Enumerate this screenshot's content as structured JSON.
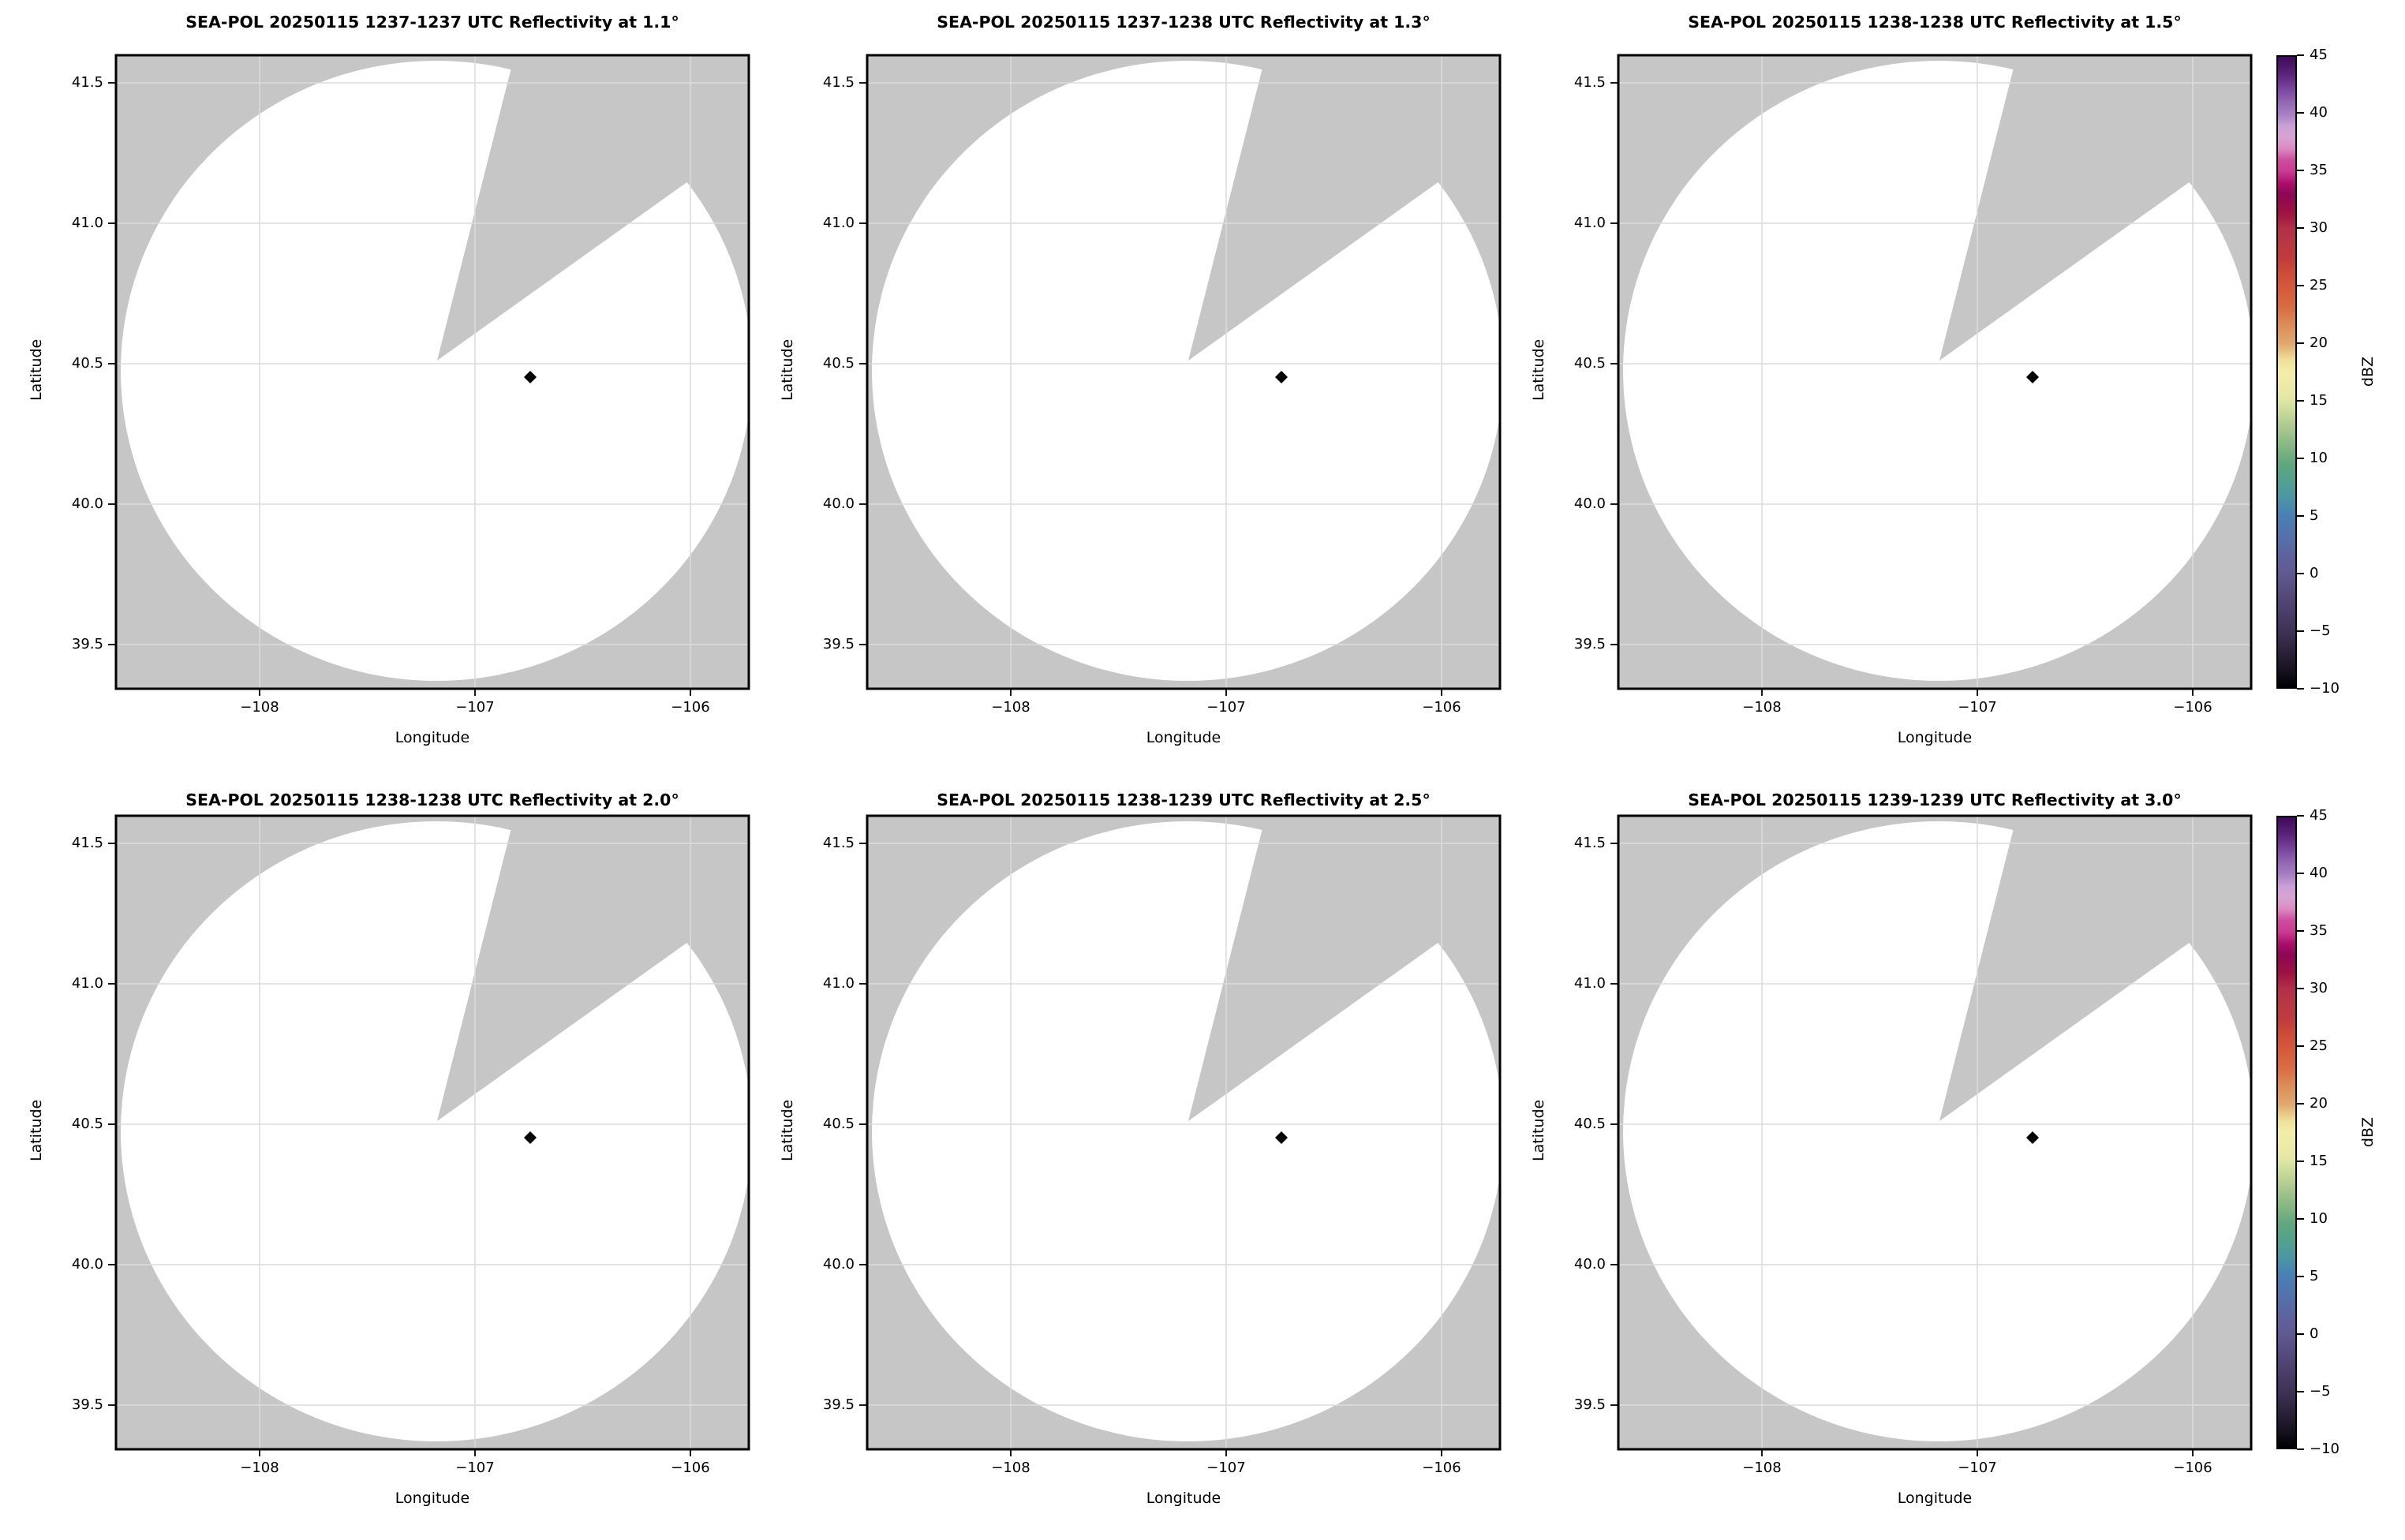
{
  "figure": {
    "xlabel": "Longitude",
    "ylabel": "Latitude",
    "x_ticks": [
      "−108",
      "−107",
      "−106"
    ],
    "y_ticks": [
      "41.5",
      "41.0",
      "40.5",
      "40.0",
      "39.5"
    ],
    "colors": {
      "panel_face": "#c6c6c6",
      "scan_area": "#ffffff",
      "gridline": "#dcdcdc",
      "border": "#000000",
      "marker": "#000000",
      "page_background": "#ffffff"
    },
    "panels": [
      {
        "title": "SEA-POL 20250115 1237-1237 UTC Reflectivity at 1.1°"
      },
      {
        "title": "SEA-POL 20250115 1237-1238 UTC Reflectivity at 1.3°"
      },
      {
        "title": "SEA-POL 20250115 1238-1238 UTC Reflectivity at 1.5°"
      },
      {
        "title": "SEA-POL 20250115 1238-1238 UTC Reflectivity at 2.0°"
      },
      {
        "title": "SEA-POL 20250115 1238-1239 UTC Reflectivity at 2.5°"
      },
      {
        "title": "SEA-POL 20250115 1239-1239 UTC Reflectivity at 3.0°"
      }
    ],
    "colorbar": {
      "label": "dBZ",
      "ticks": [
        "45",
        "40",
        "35",
        "30",
        "25",
        "20",
        "15",
        "10",
        "5",
        "0",
        "−5",
        "−10"
      ],
      "vmin": -10,
      "vmax": 45,
      "gradient": [
        {
          "v": -10,
          "c": "#000000"
        },
        {
          "v": -8.5,
          "c": "#171221"
        },
        {
          "v": -7,
          "c": "#2a2138"
        },
        {
          "v": -5,
          "c": "#3f3457"
        },
        {
          "v": -4,
          "c": "#463a63"
        },
        {
          "v": -2,
          "c": "#55497b"
        },
        {
          "v": 0,
          "c": "#615a92"
        },
        {
          "v": 1,
          "c": "#5f5f9b"
        },
        {
          "v": 3,
          "c": "#5570aa"
        },
        {
          "v": 5,
          "c": "#4a7fb5"
        },
        {
          "v": 6.5,
          "c": "#4b96a5"
        },
        {
          "v": 8,
          "c": "#52a18f"
        },
        {
          "v": 9.5,
          "c": "#61a67e"
        },
        {
          "v": 11,
          "c": "#84b683"
        },
        {
          "v": 13,
          "c": "#b3cc92"
        },
        {
          "v": 15,
          "c": "#dfe6a4"
        },
        {
          "v": 16,
          "c": "#ece9a8"
        },
        {
          "v": 17.5,
          "c": "#f2eda9"
        },
        {
          "v": 18.5,
          "c": "#efe09b"
        },
        {
          "v": 20,
          "c": "#e0a76e"
        },
        {
          "v": 21.5,
          "c": "#dc8f5a"
        },
        {
          "v": 23,
          "c": "#d86f44"
        },
        {
          "v": 25,
          "c": "#d4573b"
        },
        {
          "v": 26.5,
          "c": "#c94738"
        },
        {
          "v": 27.5,
          "c": "#bf3a3e"
        },
        {
          "v": 28.5,
          "c": "#b73a42"
        },
        {
          "v": 30,
          "c": "#b23048"
        },
        {
          "v": 31.5,
          "c": "#9c1142"
        },
        {
          "v": 33,
          "c": "#8c0754"
        },
        {
          "v": 34,
          "c": "#ad0e6e"
        },
        {
          "v": 35,
          "c": "#c93b92"
        },
        {
          "v": 36,
          "c": "#cc4d9e"
        },
        {
          "v": 37,
          "c": "#dc8ac2"
        },
        {
          "v": 38,
          "c": "#d8a3d4"
        },
        {
          "v": 39,
          "c": "#c99fd6"
        },
        {
          "v": 40,
          "c": "#a57fc2"
        },
        {
          "v": 41,
          "c": "#9468b3"
        },
        {
          "v": 42,
          "c": "#7e4aa3"
        },
        {
          "v": 43.5,
          "c": "#5b2379"
        },
        {
          "v": 45,
          "c": "#3d0a59"
        }
      ]
    }
  },
  "chart_data": [
    {
      "type": "radar_ppi_map",
      "title": "SEA-POL 20250115 1237-1237 UTC Reflectivity at 1.1°",
      "radar": "SEA-POL",
      "date": "20250115",
      "time_utc": "1237-1237",
      "elevation_deg": 1.1,
      "xlabel": "Longitude",
      "ylabel": "Latitude",
      "xlim": [
        -108.67,
        -105.73
      ],
      "ylim": [
        39.34,
        41.6
      ],
      "x_ticks": [
        -108,
        -107,
        -106
      ],
      "y_ticks": [
        39.5,
        40.0,
        40.5,
        41.0,
        41.5
      ],
      "radar_center": {
        "lon": -107.18,
        "lat": 40.48
      },
      "coverage_radius_deg_lat": 1.11,
      "missing_sector_azimuth_deg": [
        14,
        55
      ],
      "marker_point": {
        "lon": -106.74,
        "lat": 40.45
      },
      "colorbar": {
        "label": "dBZ",
        "min": -10,
        "max": 45,
        "tick_step": 5
      },
      "field_note": "no reflectivity echoes visible; scanned disk rendered blank/white on gray background"
    },
    {
      "type": "radar_ppi_map",
      "title": "SEA-POL 20250115 1237-1238 UTC Reflectivity at 1.3°",
      "radar": "SEA-POL",
      "date": "20250115",
      "time_utc": "1237-1238",
      "elevation_deg": 1.3,
      "xlabel": "Longitude",
      "ylabel": "Latitude",
      "xlim": [
        -108.67,
        -105.73
      ],
      "ylim": [
        39.34,
        41.6
      ],
      "x_ticks": [
        -108,
        -107,
        -106
      ],
      "y_ticks": [
        39.5,
        40.0,
        40.5,
        41.0,
        41.5
      ],
      "radar_center": {
        "lon": -107.18,
        "lat": 40.48
      },
      "coverage_radius_deg_lat": 1.11,
      "missing_sector_azimuth_deg": [
        14,
        55
      ],
      "marker_point": {
        "lon": -106.74,
        "lat": 40.45
      },
      "colorbar": {
        "label": "dBZ",
        "min": -10,
        "max": 45,
        "tick_step": 5
      },
      "field_note": "no reflectivity echoes visible; scanned disk rendered blank/white on gray background"
    },
    {
      "type": "radar_ppi_map",
      "title": "SEA-POL 20250115 1238-1238 UTC Reflectivity at 1.5°",
      "radar": "SEA-POL",
      "date": "20250115",
      "time_utc": "1238-1238",
      "elevation_deg": 1.5,
      "xlabel": "Longitude",
      "ylabel": "Latitude",
      "xlim": [
        -108.67,
        -105.73
      ],
      "ylim": [
        39.34,
        41.6
      ],
      "x_ticks": [
        -108,
        -107,
        -106
      ],
      "y_ticks": [
        39.5,
        40.0,
        40.5,
        41.0,
        41.5
      ],
      "radar_center": {
        "lon": -107.18,
        "lat": 40.48
      },
      "coverage_radius_deg_lat": 1.11,
      "missing_sector_azimuth_deg": [
        14,
        55
      ],
      "marker_point": {
        "lon": -106.74,
        "lat": 40.45
      },
      "colorbar": {
        "label": "dBZ",
        "min": -10,
        "max": 45,
        "tick_step": 5
      },
      "field_note": "no reflectivity echoes visible; scanned disk rendered blank/white on gray background"
    },
    {
      "type": "radar_ppi_map",
      "title": "SEA-POL 20250115 1238-1238 UTC Reflectivity at 2.0°",
      "radar": "SEA-POL",
      "date": "20250115",
      "time_utc": "1238-1238",
      "elevation_deg": 2.0,
      "xlabel": "Longitude",
      "ylabel": "Latitude",
      "xlim": [
        -108.67,
        -105.73
      ],
      "ylim": [
        39.34,
        41.6
      ],
      "x_ticks": [
        -108,
        -107,
        -106
      ],
      "y_ticks": [
        39.5,
        40.0,
        40.5,
        41.0,
        41.5
      ],
      "radar_center": {
        "lon": -107.18,
        "lat": 40.48
      },
      "coverage_radius_deg_lat": 1.11,
      "missing_sector_azimuth_deg": [
        14,
        55
      ],
      "marker_point": {
        "lon": -106.74,
        "lat": 40.45
      },
      "colorbar": {
        "label": "dBZ",
        "min": -10,
        "max": 45,
        "tick_step": 5
      },
      "field_note": "no reflectivity echoes visible; scanned disk rendered blank/white on gray background"
    },
    {
      "type": "radar_ppi_map",
      "title": "SEA-POL 20250115 1238-1239 UTC Reflectivity at 2.5°",
      "radar": "SEA-POL",
      "date": "20250115",
      "time_utc": "1238-1239",
      "elevation_deg": 2.5,
      "xlabel": "Longitude",
      "ylabel": "Latitude",
      "xlim": [
        -108.67,
        -105.73
      ],
      "ylim": [
        39.34,
        41.6
      ],
      "x_ticks": [
        -108,
        -107,
        -106
      ],
      "y_ticks": [
        39.5,
        40.0,
        40.5,
        41.0,
        41.5
      ],
      "radar_center": {
        "lon": -107.18,
        "lat": 40.48
      },
      "coverage_radius_deg_lat": 1.11,
      "missing_sector_azimuth_deg": [
        14,
        55
      ],
      "marker_point": {
        "lon": -106.74,
        "lat": 40.45
      },
      "colorbar": {
        "label": "dBZ",
        "min": -10,
        "max": 45,
        "tick_step": 5
      },
      "field_note": "no reflectivity echoes visible; scanned disk rendered blank/white on gray background"
    },
    {
      "type": "radar_ppi_map",
      "title": "SEA-POL 20250115 1239-1239 UTC Reflectivity at 3.0°",
      "radar": "SEA-POL",
      "date": "20250115",
      "time_utc": "1239-1239",
      "elevation_deg": 3.0,
      "xlabel": "Longitude",
      "ylabel": "Latitude",
      "xlim": [
        -108.67,
        -105.73
      ],
      "ylim": [
        39.34,
        41.6
      ],
      "x_ticks": [
        -108,
        -107,
        -106
      ],
      "y_ticks": [
        39.5,
        40.0,
        40.5,
        41.0,
        41.5
      ],
      "radar_center": {
        "lon": -107.18,
        "lat": 40.48
      },
      "coverage_radius_deg_lat": 1.11,
      "missing_sector_azimuth_deg": [
        14,
        55
      ],
      "marker_point": {
        "lon": -106.74,
        "lat": 40.45
      },
      "colorbar": {
        "label": "dBZ",
        "min": -10,
        "max": 45,
        "tick_step": 5
      },
      "field_note": "no reflectivity echoes visible; scanned disk rendered blank/white on gray background"
    }
  ]
}
